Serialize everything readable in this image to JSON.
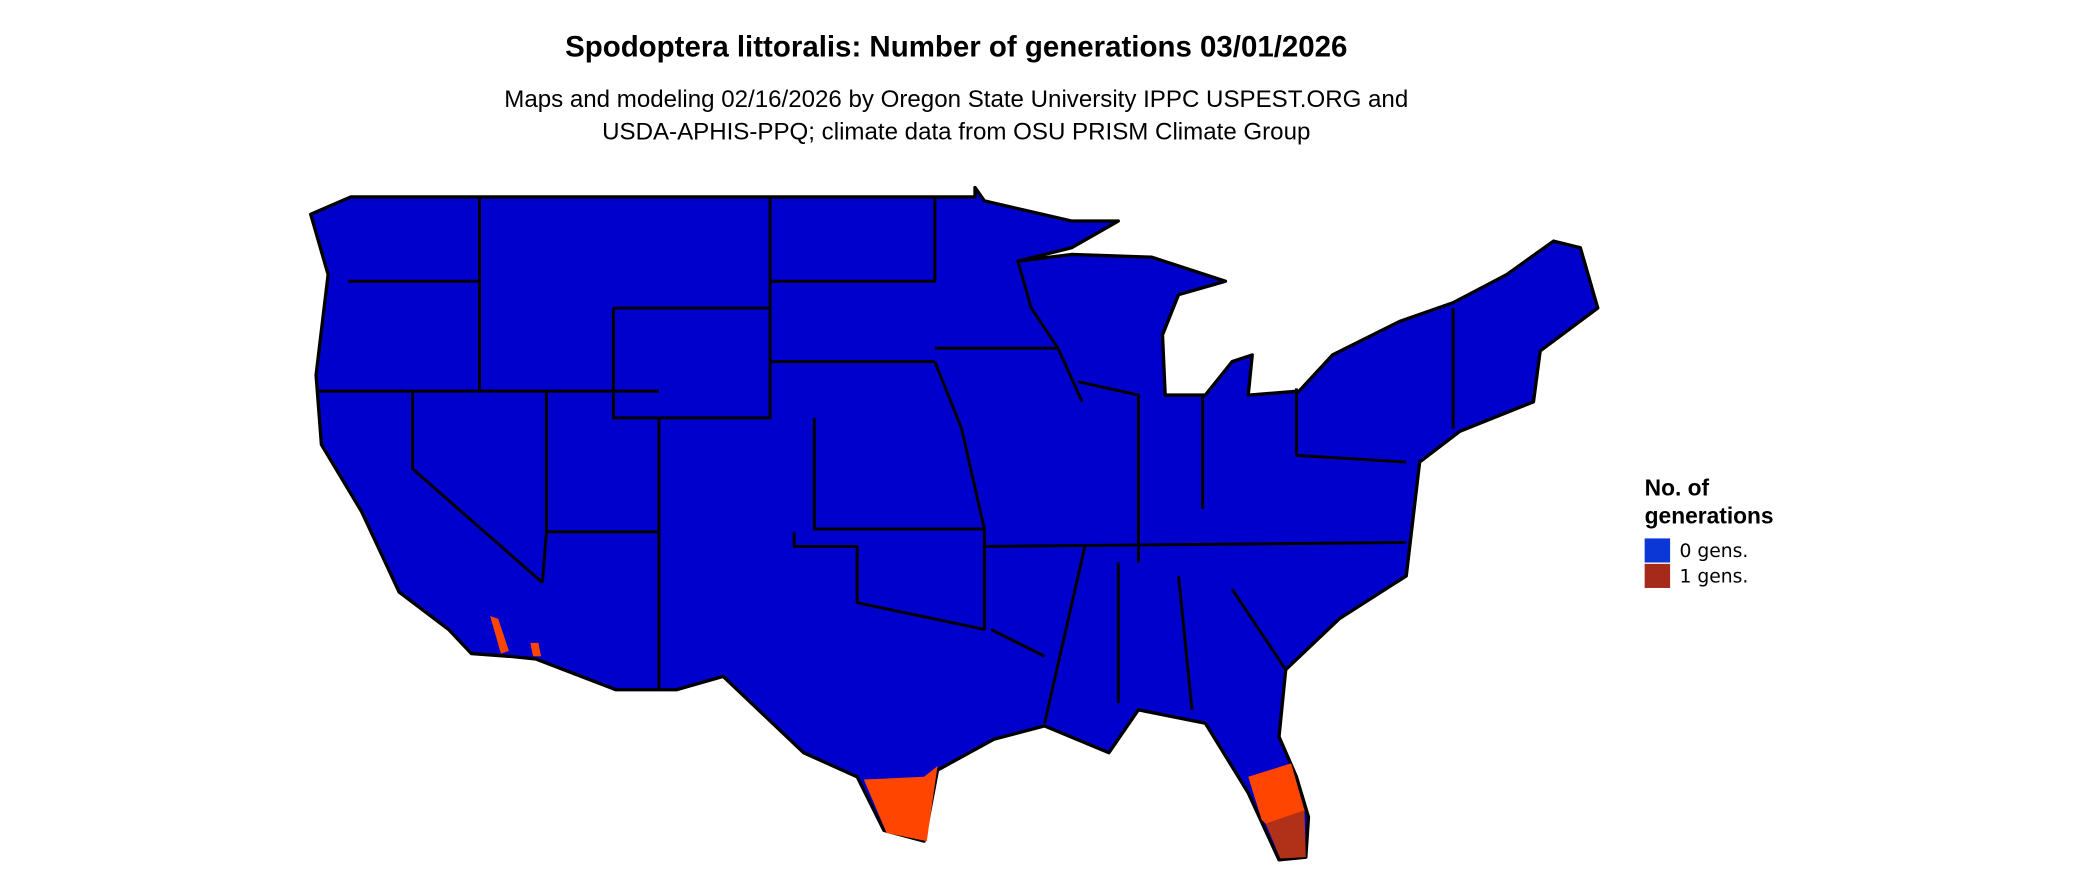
{
  "header": {
    "title": "Spodoptera littoralis: Number of generations 03/01/2026",
    "subtitle": [
      "Maps and modeling 02/16/2026 by Oregon State University IPPC USPEST.ORG and",
      "USDA-APHIS-PPQ; climate data from OSU PRISM Climate Group"
    ]
  },
  "legend": {
    "title": [
      "No. of",
      "generations"
    ],
    "items": [
      {
        "name": "0 gens.",
        "color": "#0a37d6"
      },
      {
        "name": "1 gens.",
        "color": "#a52a1a"
      }
    ]
  }
}
